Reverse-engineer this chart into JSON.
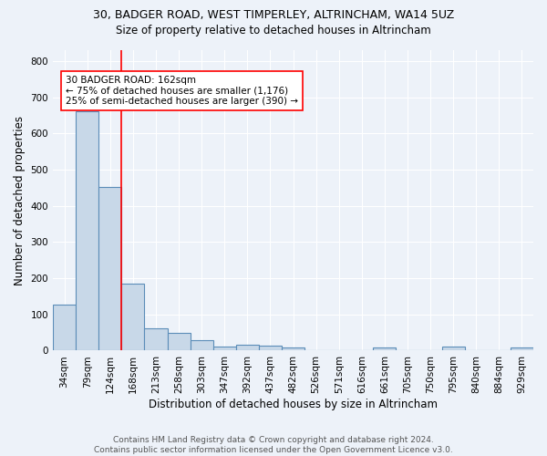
{
  "title_line1": "30, BADGER ROAD, WEST TIMPERLEY, ALTRINCHAM, WA14 5UZ",
  "title_line2": "Size of property relative to detached houses in Altrincham",
  "xlabel": "Distribution of detached houses by size in Altrincham",
  "ylabel": "Number of detached properties",
  "footnote1": "Contains HM Land Registry data © Crown copyright and database right 2024.",
  "footnote2": "Contains public sector information licensed under the Open Government Licence v3.0.",
  "categories": [
    "34sqm",
    "79sqm",
    "124sqm",
    "168sqm",
    "213sqm",
    "258sqm",
    "303sqm",
    "347sqm",
    "392sqm",
    "437sqm",
    "482sqm",
    "526sqm",
    "571sqm",
    "616sqm",
    "661sqm",
    "705sqm",
    "750sqm",
    "795sqm",
    "840sqm",
    "884sqm",
    "929sqm"
  ],
  "values": [
    128,
    660,
    452,
    185,
    62,
    48,
    28,
    12,
    16,
    15,
    9,
    0,
    0,
    0,
    8,
    0,
    0,
    12,
    0,
    0,
    8
  ],
  "bar_color": "#c8d8e8",
  "bar_edge_color": "#5b8db8",
  "red_line_x": 2.5,
  "annotation_text": "30 BADGER ROAD: 162sqm\n← 75% of detached houses are smaller (1,176)\n25% of semi-detached houses are larger (390) →",
  "annotation_box_color": "white",
  "annotation_box_edge_color": "red",
  "red_line_color": "red",
  "ylim": [
    0,
    830
  ],
  "yticks": [
    0,
    100,
    200,
    300,
    400,
    500,
    600,
    700,
    800
  ],
  "bg_color": "#edf2f9",
  "plot_bg_color": "#edf2f9",
  "grid_color": "white",
  "title_fontsize": 9,
  "subtitle_fontsize": 8.5,
  "axis_label_fontsize": 8.5,
  "tick_fontsize": 7.5,
  "footnote_fontsize": 6.5,
  "annotation_fontsize": 7.5
}
